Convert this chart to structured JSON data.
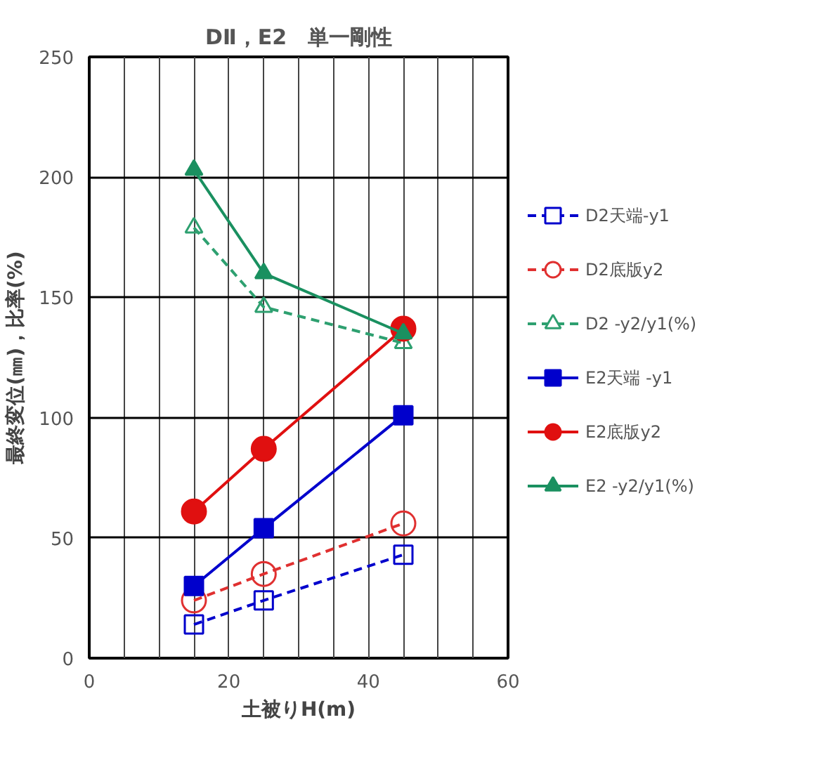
{
  "chart_data": {
    "type": "line",
    "title": "DⅡ，E2　単一剛性",
    "xlabel": "土被りH(m)",
    "ylabel": "最終変位(㎜)，比率(%)",
    "x": [
      15,
      25,
      45
    ],
    "xlim": [
      0,
      60
    ],
    "xticks": [
      0,
      {
        "value": 5,
        "label": null
      },
      {
        "value": 10,
        "label": null
      },
      {
        "value": 15,
        "label": null
      },
      20,
      {
        "value": 25,
        "label": null
      },
      {
        "value": 30,
        "label": null
      },
      {
        "value": 35,
        "label": null
      },
      40,
      {
        "value": 45,
        "label": null
      },
      {
        "value": 50,
        "label": null
      },
      {
        "value": 55,
        "label": null
      },
      60
    ],
    "ylim": [
      0,
      250
    ],
    "yticks": [
      0,
      50,
      100,
      150,
      200,
      250
    ],
    "grid": true,
    "legend": "right",
    "series": [
      {
        "name": "D2天端-y1",
        "color": "#0000cc",
        "marker": "square",
        "line_style": "dashed",
        "values": [
          14,
          24,
          43
        ]
      },
      {
        "name": "D2底版y2",
        "color": "#e03030",
        "marker": "circle",
        "line_style": "dashed",
        "values": [
          24,
          35,
          56
        ]
      },
      {
        "name": "D2 -y2/y1(%)",
        "color": "#2ea070",
        "marker": "triangle",
        "line_style": "dashed",
        "values": [
          179,
          146,
          131
        ]
      },
      {
        "name": "E2天端 -y1",
        "color": "#0000cc",
        "marker": "square",
        "line_style": "solid",
        "values": [
          30,
          54,
          101
        ]
      },
      {
        "name": "E2底版y2",
        "color": "#e01010",
        "marker": "circle",
        "line_style": "solid",
        "values": [
          61,
          87,
          137
        ]
      },
      {
        "name": "E2 -y2/y1(%)",
        "color": "#1a9060",
        "marker": "triangle",
        "line_style": "solid",
        "values": [
          203,
          160,
          135
        ]
      }
    ]
  }
}
